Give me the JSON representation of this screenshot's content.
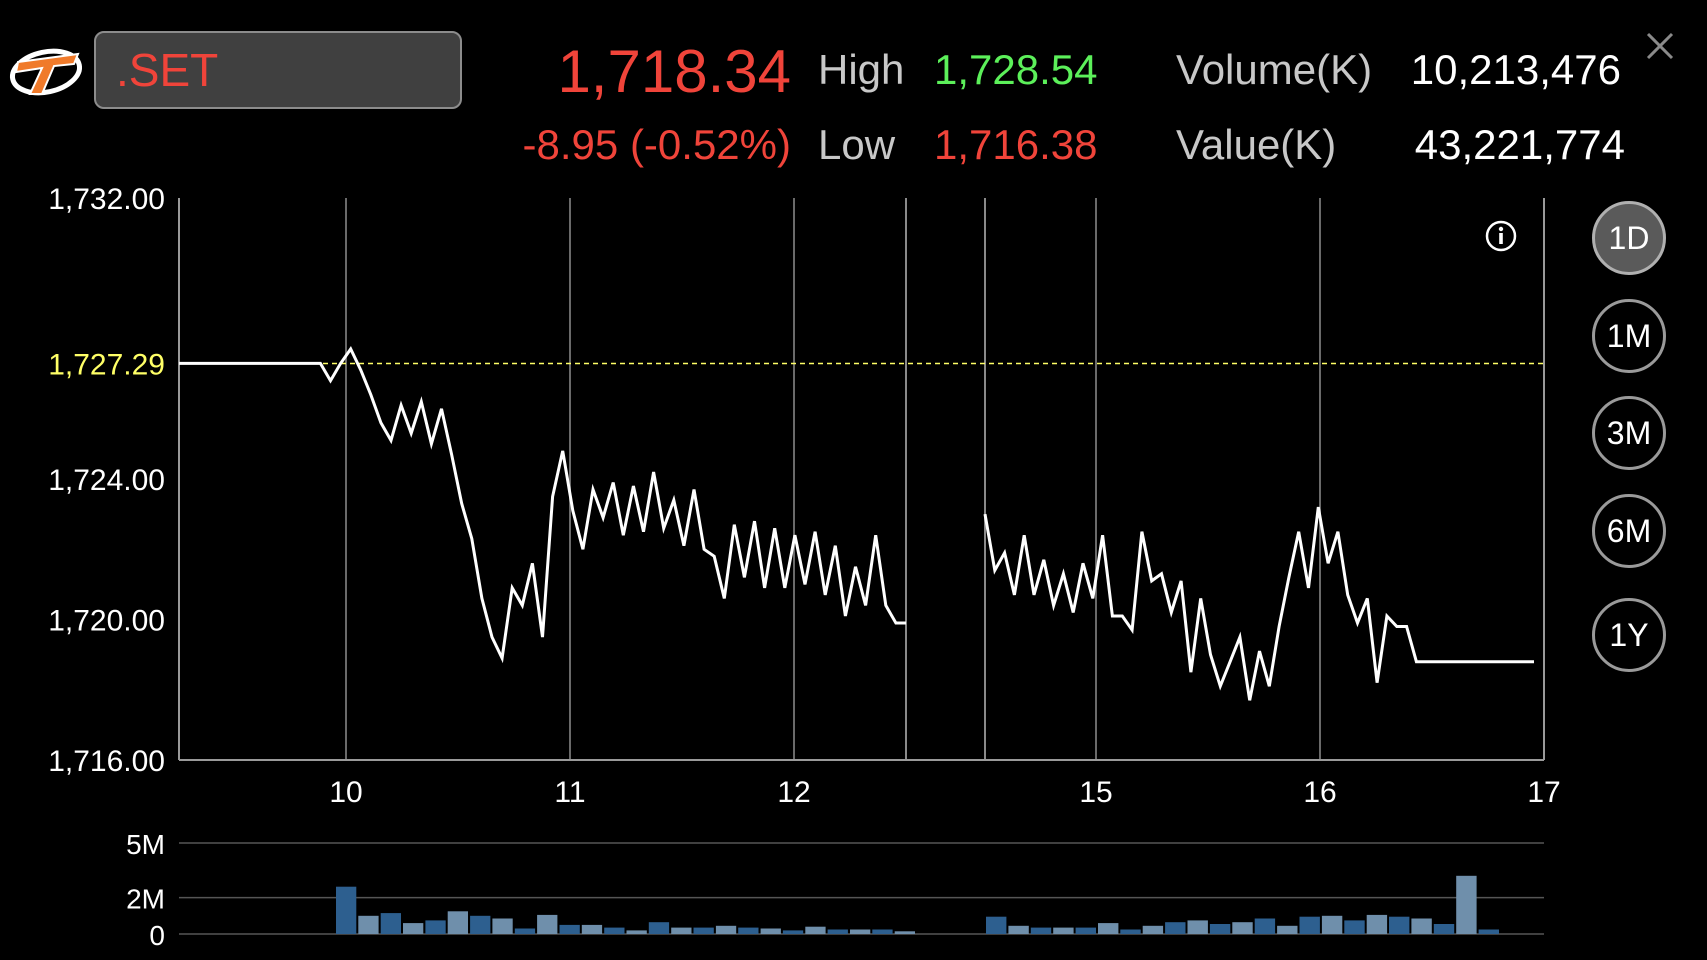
{
  "header": {
    "symbol": ".SET",
    "last_price": "1,718.34",
    "change": "-8.95 (-0.52%)",
    "high_label": "High",
    "high_value": "1,728.54",
    "low_label": "Low",
    "low_value": "1,716.38",
    "volume_label": "Volume(K)",
    "volume_value": "10,213,476",
    "value_label": "Value(K)",
    "value_value": "43,221,774"
  },
  "controls": {
    "close_icon": "close-icon",
    "info_icon": "info-icon",
    "periods": [
      {
        "label": "1D",
        "active": true
      },
      {
        "label": "1M",
        "active": false
      },
      {
        "label": "3M",
        "active": false
      },
      {
        "label": "6M",
        "active": false
      },
      {
        "label": "1Y",
        "active": false
      }
    ]
  },
  "colors": {
    "up": "#5cf05a",
    "down": "#f0443a",
    "reference": "#ffff66",
    "line": "#ffffff",
    "volume_bar": "#2d5f8f"
  },
  "chart_data": [
    {
      "type": "line",
      "title": "",
      "y_tick_labels": [
        "1,732.00",
        "1,724.00",
        "1,720.00",
        "1,716.00"
      ],
      "ylim": [
        1716,
        1732
      ],
      "reference_line": {
        "value": 1727.29,
        "label": "1,727.29"
      },
      "x_tick_labels": [
        "10",
        "11",
        "12",
        "15",
        "16",
        "17"
      ],
      "grid": "vertical at day boundaries",
      "sessions": [
        {
          "name": "",
          "values": [
            1727.29,
            1727.29,
            1727.29,
            1727.29,
            1727.29,
            1727.29,
            1727.29,
            1727.29,
            1727.29,
            1727.29,
            1727.29,
            1727.29,
            1727.29,
            1727.29,
            1727.29,
            1726.8,
            1727.29,
            1727.7,
            1727.1,
            1726.4,
            1725.6,
            1725.1,
            1726.1,
            1725.3,
            1726.2,
            1725.0,
            1726.0,
            1724.7,
            1723.3,
            1722.3,
            1720.6,
            1719.5,
            1718.9,
            1720.9,
            1720.4,
            1721.6,
            1719.5,
            1723.5,
            1724.8,
            1723.1,
            1722.0,
            1723.7,
            1722.9,
            1723.9,
            1722.4,
            1723.8,
            1722.5,
            1724.2,
            1722.6,
            1723.4,
            1722.1,
            1723.7,
            1722.0,
            1721.8,
            1720.6,
            1722.7,
            1721.2,
            1722.8,
            1720.9,
            1722.6,
            1720.9,
            1722.4,
            1721.0,
            1722.5,
            1720.7,
            1722.1,
            1720.1,
            1721.5,
            1720.4,
            1722.4,
            1720.4,
            1719.9,
            1719.9
          ]
        },
        {
          "name": "",
          "values": [
            1723.0,
            1721.4,
            1721.9,
            1720.7,
            1722.4,
            1720.7,
            1721.7,
            1720.4,
            1721.3,
            1720.2,
            1721.6,
            1720.6,
            1722.4,
            1720.1,
            1720.1,
            1719.7,
            1722.5,
            1721.1,
            1721.3,
            1720.2,
            1721.1,
            1718.5,
            1720.6,
            1719.0,
            1718.1,
            1718.8,
            1719.5,
            1717.7,
            1719.1,
            1718.1,
            1719.8,
            1721.2,
            1722.5,
            1720.9,
            1723.2,
            1721.6,
            1722.5,
            1720.7,
            1719.9,
            1720.6,
            1718.2,
            1720.1,
            1719.8,
            1719.8,
            1718.8,
            1718.8,
            1718.8,
            1718.8,
            1718.8,
            1718.8,
            1718.8,
            1718.8,
            1718.8,
            1718.8,
            1718.8,
            1718.8,
            1718.8
          ]
        }
      ]
    },
    {
      "type": "bar",
      "title": "",
      "y_tick_labels": [
        "5M",
        "2M",
        "0"
      ],
      "ylim": [
        0,
        5
      ],
      "sessions": [
        {
          "name": "",
          "values": [
            2.6,
            1.0,
            1.15,
            0.6,
            0.75,
            1.25,
            1.0,
            0.85,
            0.3,
            1.05,
            0.5,
            0.5,
            0.35,
            0.2,
            0.65,
            0.35,
            0.35,
            0.45,
            0.35,
            0.3,
            0.2,
            0.4,
            0.25,
            0.25,
            0.25,
            0.15
          ]
        },
        {
          "name": "",
          "values": [
            0.95,
            0.45,
            0.35,
            0.35,
            0.35,
            0.6,
            0.25,
            0.45,
            0.65,
            0.75,
            0.55,
            0.65,
            0.85,
            0.45,
            0.95,
            1.0,
            0.75,
            1.05,
            0.95,
            0.85,
            0.55,
            3.2,
            0.25
          ]
        }
      ]
    }
  ]
}
